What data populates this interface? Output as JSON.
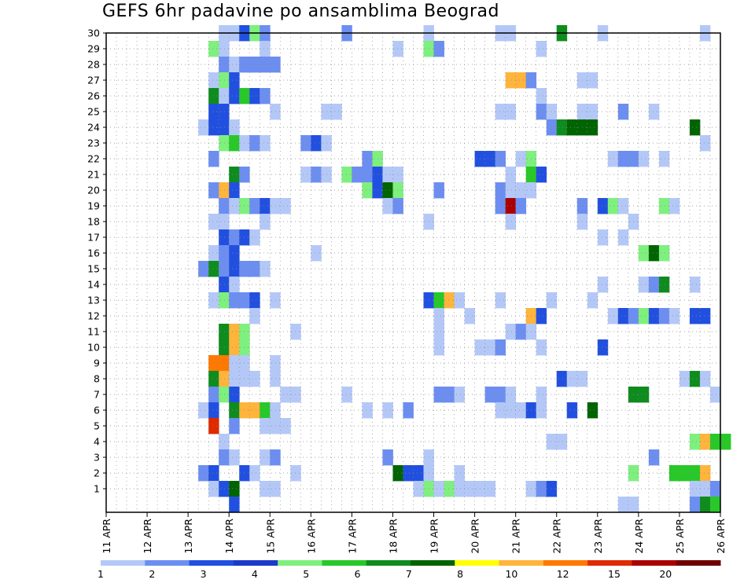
{
  "chart_data": {
    "type": "heatmap",
    "title": "GEFS 6hr padavine po ansamblima Beograd",
    "x_ticks": [
      "11 APR",
      "12 APR",
      "13 APR",
      "14 APR",
      "15 APR",
      "16 APR",
      "17 APR",
      "18 APR",
      "19 APR",
      "20 APR",
      "21 APR",
      "22 APR",
      "23 APR",
      "24 APR",
      "25 APR",
      "26 APR"
    ],
    "y_members": [
      "1",
      "2",
      "3",
      "4",
      "5",
      "6",
      "7",
      "8",
      "9",
      "10",
      "11",
      "12",
      "13",
      "14",
      "15",
      "16",
      "17",
      "18",
      "19",
      "20",
      "21",
      "22",
      "23",
      "24",
      "25",
      "26",
      "27",
      "28",
      "29",
      "30"
    ],
    "grid": true,
    "colorbar": {
      "labels": [
        "1",
        "2",
        "3",
        "4",
        "5",
        "6",
        "7",
        "8",
        "10",
        "12",
        "15",
        "20"
      ],
      "colors": [
        "#b4c8f8",
        "#6c8ef0",
        "#2150e0",
        "#1c3ac8",
        "#7ef07e",
        "#28c828",
        "#0e8c1e",
        "#006400",
        "#ffff00",
        "#ffb43c",
        "#ff7800",
        "#e02a00",
        "#aa0000",
        "#6e0000"
      ]
    },
    "cells_note_format": "[member, day-offset-from-11-APR-00Z in 6h steps, color-index]",
    "cells": [
      [
        30,
        11,
        1
      ],
      [
        30,
        12,
        1
      ],
      [
        30,
        13,
        3
      ],
      [
        30,
        14,
        5
      ],
      [
        30,
        15,
        2
      ],
      [
        30,
        23,
        2
      ],
      [
        30,
        31,
        1
      ],
      [
        30,
        38,
        1
      ],
      [
        30,
        39,
        1
      ],
      [
        30,
        44,
        7
      ],
      [
        30,
        48,
        1
      ],
      [
        30,
        58,
        1
      ],
      [
        29,
        10,
        5
      ],
      [
        29,
        11,
        1
      ],
      [
        29,
        15,
        1
      ],
      [
        29,
        28,
        1
      ],
      [
        29,
        31,
        5
      ],
      [
        29,
        32,
        2
      ],
      [
        29,
        42,
        1
      ],
      [
        28,
        11,
        2
      ],
      [
        28,
        12,
        1
      ],
      [
        28,
        13,
        2
      ],
      [
        28,
        14,
        2
      ],
      [
        28,
        15,
        2
      ],
      [
        28,
        16,
        2
      ],
      [
        27,
        10,
        1
      ],
      [
        27,
        11,
        5
      ],
      [
        27,
        12,
        3
      ],
      [
        27,
        39,
        10
      ],
      [
        27,
        40,
        10
      ],
      [
        27,
        41,
        2
      ],
      [
        27,
        46,
        1
      ],
      [
        27,
        47,
        1
      ],
      [
        26,
        10,
        7
      ],
      [
        26,
        11,
        1
      ],
      [
        26,
        12,
        3
      ],
      [
        26,
        13,
        6
      ],
      [
        26,
        14,
        3
      ],
      [
        26,
        15,
        2
      ],
      [
        26,
        42,
        1
      ],
      [
        25,
        10,
        3
      ],
      [
        25,
        11,
        3
      ],
      [
        25,
        16,
        1
      ],
      [
        25,
        21,
        1
      ],
      [
        25,
        22,
        1
      ],
      [
        25,
        38,
        1
      ],
      [
        25,
        39,
        1
      ],
      [
        25,
        42,
        2
      ],
      [
        25,
        43,
        1
      ],
      [
        25,
        46,
        1
      ],
      [
        25,
        47,
        1
      ],
      [
        25,
        50,
        2
      ],
      [
        25,
        53,
        1
      ],
      [
        24,
        9,
        1
      ],
      [
        24,
        10,
        3
      ],
      [
        24,
        11,
        3
      ],
      [
        24,
        12,
        1
      ],
      [
        24,
        43,
        2
      ],
      [
        24,
        44,
        7
      ],
      [
        24,
        45,
        8
      ],
      [
        24,
        46,
        8
      ],
      [
        24,
        47,
        8
      ],
      [
        24,
        57,
        8
      ],
      [
        23,
        11,
        5
      ],
      [
        23,
        12,
        6
      ],
      [
        23,
        13,
        1
      ],
      [
        23,
        14,
        2
      ],
      [
        23,
        15,
        1
      ],
      [
        23,
        19,
        2
      ],
      [
        23,
        20,
        3
      ],
      [
        23,
        21,
        1
      ],
      [
        23,
        58,
        1
      ],
      [
        22,
        10,
        2
      ],
      [
        22,
        25,
        2
      ],
      [
        22,
        26,
        5
      ],
      [
        22,
        36,
        3
      ],
      [
        22,
        37,
        3
      ],
      [
        22,
        38,
        2
      ],
      [
        22,
        40,
        1
      ],
      [
        22,
        41,
        5
      ],
      [
        22,
        49,
        1
      ],
      [
        22,
        50,
        2
      ],
      [
        22,
        51,
        2
      ],
      [
        22,
        52,
        1
      ],
      [
        22,
        54,
        1
      ],
      [
        21,
        12,
        7
      ],
      [
        21,
        13,
        2
      ],
      [
        21,
        19,
        1
      ],
      [
        21,
        20,
        2
      ],
      [
        21,
        21,
        1
      ],
      [
        21,
        23,
        5
      ],
      [
        21,
        24,
        2
      ],
      [
        21,
        25,
        2
      ],
      [
        21,
        26,
        3
      ],
      [
        21,
        27,
        1
      ],
      [
        21,
        28,
        1
      ],
      [
        21,
        39,
        1
      ],
      [
        21,
        41,
        6
      ],
      [
        21,
        42,
        3
      ],
      [
        20,
        10,
        2
      ],
      [
        20,
        11,
        10
      ],
      [
        20,
        12,
        3
      ],
      [
        20,
        25,
        5
      ],
      [
        20,
        26,
        3
      ],
      [
        20,
        27,
        8
      ],
      [
        20,
        28,
        5
      ],
      [
        20,
        32,
        2
      ],
      [
        20,
        38,
        2
      ],
      [
        20,
        39,
        1
      ],
      [
        20,
        40,
        1
      ],
      [
        20,
        41,
        1
      ],
      [
        19,
        11,
        2
      ],
      [
        19,
        12,
        1
      ],
      [
        19,
        13,
        5
      ],
      [
        19,
        14,
        2
      ],
      [
        19,
        15,
        3
      ],
      [
        19,
        16,
        1
      ],
      [
        19,
        17,
        1
      ],
      [
        19,
        27,
        1
      ],
      [
        19,
        28,
        2
      ],
      [
        19,
        38,
        2
      ],
      [
        19,
        39,
        13
      ],
      [
        19,
        40,
        2
      ],
      [
        19,
        46,
        2
      ],
      [
        19,
        48,
        3
      ],
      [
        19,
        49,
        5
      ],
      [
        19,
        50,
        1
      ],
      [
        19,
        54,
        5
      ],
      [
        19,
        55,
        1
      ],
      [
        18,
        10,
        1
      ],
      [
        18,
        11,
        1
      ],
      [
        18,
        15,
        1
      ],
      [
        18,
        31,
        1
      ],
      [
        18,
        39,
        1
      ],
      [
        18,
        46,
        1
      ],
      [
        18,
        51,
        1
      ],
      [
        17,
        11,
        3
      ],
      [
        17,
        12,
        2
      ],
      [
        17,
        13,
        3
      ],
      [
        17,
        14,
        1
      ],
      [
        17,
        48,
        1
      ],
      [
        17,
        50,
        1
      ],
      [
        16,
        10,
        1
      ],
      [
        16,
        11,
        2
      ],
      [
        16,
        12,
        3
      ],
      [
        16,
        20,
        1
      ],
      [
        16,
        52,
        5
      ],
      [
        16,
        53,
        8
      ],
      [
        16,
        54,
        5
      ],
      [
        15,
        9,
        2
      ],
      [
        15,
        10,
        7
      ],
      [
        15,
        11,
        2
      ],
      [
        15,
        12,
        3
      ],
      [
        15,
        13,
        2
      ],
      [
        15,
        14,
        2
      ],
      [
        15,
        15,
        1
      ],
      [
        14,
        11,
        3
      ],
      [
        14,
        12,
        1
      ],
      [
        14,
        48,
        1
      ],
      [
        14,
        52,
        1
      ],
      [
        14,
        53,
        2
      ],
      [
        14,
        54,
        7
      ],
      [
        14,
        57,
        1
      ],
      [
        13,
        10,
        1
      ],
      [
        13,
        11,
        5
      ],
      [
        13,
        12,
        2
      ],
      [
        13,
        13,
        2
      ],
      [
        13,
        14,
        3
      ],
      [
        13,
        16,
        1
      ],
      [
        13,
        31,
        3
      ],
      [
        13,
        32,
        6
      ],
      [
        13,
        33,
        10
      ],
      [
        13,
        34,
        1
      ],
      [
        13,
        38,
        1
      ],
      [
        13,
        43,
        1
      ],
      [
        13,
        47,
        1
      ],
      [
        12,
        14,
        1
      ],
      [
        12,
        32,
        1
      ],
      [
        12,
        35,
        1
      ],
      [
        12,
        41,
        10
      ],
      [
        12,
        42,
        3
      ],
      [
        12,
        49,
        1
      ],
      [
        12,
        50,
        3
      ],
      [
        12,
        51,
        2
      ],
      [
        12,
        52,
        5
      ],
      [
        12,
        53,
        3
      ],
      [
        12,
        54,
        2
      ],
      [
        12,
        55,
        1
      ],
      [
        12,
        57,
        3
      ],
      [
        12,
        58,
        3
      ],
      [
        11,
        11,
        7
      ],
      [
        11,
        12,
        10
      ],
      [
        11,
        13,
        5
      ],
      [
        11,
        18,
        1
      ],
      [
        11,
        32,
        1
      ],
      [
        11,
        39,
        1
      ],
      [
        11,
        40,
        2
      ],
      [
        11,
        41,
        1
      ],
      [
        10,
        11,
        7
      ],
      [
        10,
        12,
        10
      ],
      [
        10,
        13,
        5
      ],
      [
        10,
        32,
        1
      ],
      [
        10,
        36,
        1
      ],
      [
        10,
        37,
        1
      ],
      [
        10,
        38,
        2
      ],
      [
        10,
        42,
        1
      ],
      [
        10,
        48,
        3
      ],
      [
        9,
        10,
        11
      ],
      [
        9,
        11,
        11
      ],
      [
        9,
        12,
        1
      ],
      [
        9,
        13,
        1
      ],
      [
        9,
        16,
        1
      ],
      [
        8,
        10,
        7
      ],
      [
        8,
        11,
        10
      ],
      [
        8,
        12,
        1
      ],
      [
        8,
        13,
        1
      ],
      [
        8,
        14,
        1
      ],
      [
        8,
        16,
        1
      ],
      [
        8,
        44,
        3
      ],
      [
        8,
        45,
        1
      ],
      [
        8,
        46,
        1
      ],
      [
        8,
        56,
        1
      ],
      [
        8,
        57,
        7
      ],
      [
        8,
        58,
        1
      ],
      [
        7,
        10,
        2
      ],
      [
        7,
        11,
        5
      ],
      [
        7,
        12,
        3
      ],
      [
        7,
        17,
        1
      ],
      [
        7,
        18,
        1
      ],
      [
        7,
        23,
        1
      ],
      [
        7,
        32,
        2
      ],
      [
        7,
        33,
        2
      ],
      [
        7,
        34,
        1
      ],
      [
        7,
        37,
        2
      ],
      [
        7,
        38,
        2
      ],
      [
        7,
        39,
        1
      ],
      [
        7,
        42,
        1
      ],
      [
        7,
        51,
        7
      ],
      [
        7,
        52,
        7
      ],
      [
        7,
        59,
        1
      ],
      [
        6,
        9,
        1
      ],
      [
        6,
        10,
        3
      ],
      [
        6,
        12,
        7
      ],
      [
        6,
        13,
        10
      ],
      [
        6,
        14,
        10
      ],
      [
        6,
        15,
        6
      ],
      [
        6,
        16,
        1
      ],
      [
        6,
        25,
        1
      ],
      [
        6,
        27,
        1
      ],
      [
        6,
        29,
        2
      ],
      [
        6,
        38,
        1
      ],
      [
        6,
        39,
        1
      ],
      [
        6,
        40,
        1
      ],
      [
        6,
        41,
        3
      ],
      [
        6,
        42,
        1
      ],
      [
        6,
        45,
        3
      ],
      [
        6,
        47,
        8
      ],
      [
        5,
        10,
        12
      ],
      [
        5,
        12,
        2
      ],
      [
        5,
        15,
        1
      ],
      [
        5,
        16,
        1
      ],
      [
        5,
        17,
        1
      ],
      [
        4,
        11,
        1
      ],
      [
        4,
        43,
        1
      ],
      [
        4,
        44,
        1
      ],
      [
        4,
        57,
        5
      ],
      [
        4,
        58,
        10
      ],
      [
        4,
        59,
        6
      ],
      [
        4,
        60,
        6
      ],
      [
        3,
        11,
        2
      ],
      [
        3,
        12,
        1
      ],
      [
        3,
        15,
        1
      ],
      [
        3,
        16,
        2
      ],
      [
        3,
        27,
        2
      ],
      [
        3,
        31,
        1
      ],
      [
        3,
        53,
        2
      ],
      [
        2,
        9,
        2
      ],
      [
        2,
        10,
        3
      ],
      [
        2,
        13,
        3
      ],
      [
        2,
        14,
        1
      ],
      [
        2,
        18,
        1
      ],
      [
        2,
        28,
        8
      ],
      [
        2,
        29,
        3
      ],
      [
        2,
        30,
        3
      ],
      [
        2,
        31,
        1
      ],
      [
        2,
        34,
        1
      ],
      [
        2,
        51,
        5
      ],
      [
        2,
        55,
        6
      ],
      [
        2,
        56,
        6
      ],
      [
        2,
        57,
        6
      ],
      [
        2,
        58,
        10
      ],
      [
        1,
        10,
        1
      ],
      [
        1,
        11,
        3
      ],
      [
        1,
        12,
        8
      ],
      [
        1,
        15,
        1
      ],
      [
        1,
        16,
        1
      ],
      [
        1,
        30,
        1
      ],
      [
        1,
        31,
        5
      ],
      [
        1,
        32,
        1
      ],
      [
        1,
        33,
        5
      ],
      [
        1,
        34,
        1
      ],
      [
        1,
        35,
        1
      ],
      [
        1,
        36,
        1
      ],
      [
        1,
        37,
        1
      ],
      [
        1,
        41,
        1
      ],
      [
        1,
        42,
        2
      ],
      [
        1,
        43,
        3
      ],
      [
        1,
        57,
        1
      ],
      [
        1,
        58,
        1
      ],
      [
        1,
        59,
        2
      ],
      [
        0,
        12,
        3
      ],
      [
        0,
        50,
        1
      ],
      [
        0,
        51,
        1
      ],
      [
        0,
        57,
        2
      ],
      [
        0,
        58,
        7
      ],
      [
        0,
        59,
        6
      ]
    ]
  }
}
